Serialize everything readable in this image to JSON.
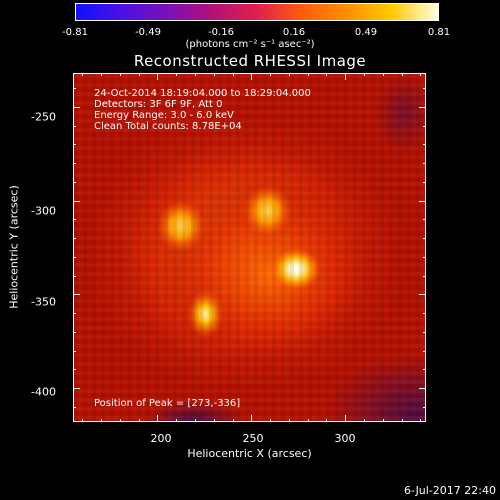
{
  "colorbar": {
    "ticks": [
      "-0.81",
      "-0.49",
      "-0.16",
      "0.16",
      "0.49",
      "0.81"
    ],
    "units": "(photons cm⁻² s⁻¹ asec⁻²)"
  },
  "title": "Reconstructed RHESSI Image",
  "info": {
    "time": "24-Oct-2014 18:19:04.000 to 18:29:04.000",
    "detectors": "Detectors: 3F 6F 9F, Att 0",
    "energy": "Energy Range: 3.0 - 6.0 keV",
    "clean": "Clean    Total counts: 8.78E+04"
  },
  "peak": "Position of Peak = [273,-336]",
  "axes": {
    "xlabel": "Heliocentric X (arcsec)",
    "ylabel": "Heliocentric Y (arcsec)",
    "xticks": [
      "200",
      "250",
      "300"
    ],
    "yticks": [
      "-250",
      "-300",
      "-350",
      "-400"
    ]
  },
  "datestamp": "6-Jul-2017 22:40",
  "chart_data": {
    "type": "heatmap",
    "title": "Reconstructed RHESSI Image",
    "xlabel": "Heliocentric X (arcsec)",
    "ylabel": "Heliocentric Y (arcsec)",
    "xlim": [
      155,
      343
    ],
    "ylim": [
      -418,
      -232
    ],
    "colorbar_range": [
      -0.81,
      0.81
    ],
    "sources": [
      {
        "x": 273,
        "y": -336,
        "level": "peak"
      },
      {
        "x": 225,
        "y": -360,
        "level": "high"
      },
      {
        "x": 212,
        "y": -313,
        "level": "medium"
      },
      {
        "x": 258,
        "y": -305,
        "level": "medium"
      }
    ]
  }
}
